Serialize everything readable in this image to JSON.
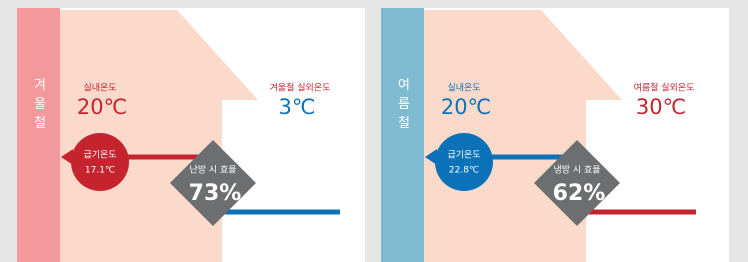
{
  "panels": [
    {
      "season": "겨울철",
      "indoor_label": "실내온도",
      "indoor_temp": "20℃",
      "outdoor_label": "겨울철 실외온도",
      "outdoor_temp": "3℃",
      "supply_label": "급기온도",
      "supply_temp": "17.1℃",
      "efficiency_label": "난방 시 효율",
      "efficiency": "73%"
    },
    {
      "season": "여름철",
      "indoor_label": "실내온도",
      "indoor_temp": "20℃",
      "outdoor_label": "여름철 실외온도",
      "outdoor_temp": "30℃",
      "supply_label": "급기온도",
      "supply_temp": "22.8℃",
      "efficiency_label": "냉방 시 효율",
      "efficiency": "62%"
    }
  ]
}
